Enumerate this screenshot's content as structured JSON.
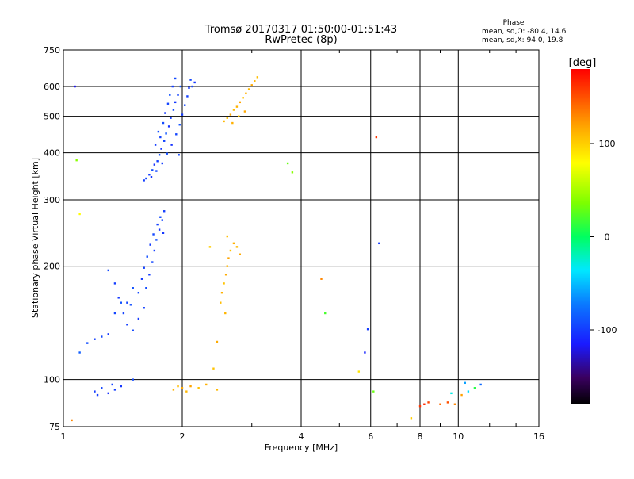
{
  "chart_data": {
    "type": "scatter",
    "title": "Tromsø 20170317 01:50:00-01:51:43",
    "subtitle": "RwPretec (8p)",
    "xlabel": "Frequency [MHz]",
    "ylabel": "Stationary phase Virtual Height [km]",
    "x_scale": "log",
    "y_scale": "log",
    "xlim": [
      1,
      16
    ],
    "ylim": [
      75,
      750
    ],
    "x_ticks": [
      1,
      2,
      4,
      6,
      8,
      10,
      16
    ],
    "x_tick_labels": [
      "1",
      "2",
      "4",
      "6",
      "8",
      "10",
      "16"
    ],
    "y_ticks": [
      75,
      100,
      200,
      300,
      400,
      500,
      600,
      750
    ],
    "y_tick_labels": [
      "75",
      "100",
      "200",
      "300",
      "400",
      "500",
      "600",
      "750"
    ],
    "grid": true,
    "stats": {
      "heading": "Phase",
      "o_line": "mean, sd,O: -80.4, 14.6",
      "x_line": "mean, sd,X:  94.0, 19.8"
    },
    "colorbar": {
      "label": "[deg]",
      "range": [
        -180,
        180
      ],
      "ticks": [
        100,
        0,
        -100
      ],
      "tick_labels": [
        "100",
        "0",
        "-100"
      ]
    },
    "series": [
      {
        "points": [
          [
            1.62,
            342,
            -95
          ],
          [
            1.65,
            350,
            -100
          ],
          [
            1.68,
            360,
            -92
          ],
          [
            1.7,
            372,
            -105
          ],
          [
            1.73,
            380,
            -98
          ],
          [
            1.75,
            395,
            -90
          ],
          [
            1.77,
            410,
            -102
          ],
          [
            1.8,
            430,
            -96
          ],
          [
            1.82,
            450,
            -88
          ],
          [
            1.85,
            470,
            -104
          ],
          [
            1.87,
            495,
            -99
          ],
          [
            1.9,
            520,
            -93
          ],
          [
            1.92,
            545,
            -101
          ],
          [
            1.95,
            570,
            -97
          ],
          [
            1.98,
            600,
            -91
          ],
          [
            1.67,
            345,
            -103
          ],
          [
            1.72,
            358,
            -95
          ],
          [
            1.78,
            375,
            -99
          ],
          [
            1.83,
            398,
            -92
          ],
          [
            1.88,
            420,
            -104
          ],
          [
            1.93,
            448,
            -96
          ],
          [
            1.97,
            475,
            -90
          ],
          [
            2.0,
            505,
            -100
          ],
          [
            2.03,
            535,
            -94
          ],
          [
            2.06,
            565,
            -98
          ],
          [
            2.08,
            595,
            -102
          ],
          [
            2.1,
            625,
            -95
          ],
          [
            1.76,
            440,
            -97
          ],
          [
            1.79,
            480,
            -93
          ],
          [
            1.81,
            510,
            -101
          ],
          [
            1.84,
            540,
            -96
          ],
          [
            1.86,
            570,
            -90
          ],
          [
            1.89,
            600,
            -99
          ],
          [
            1.92,
            630,
            -94
          ],
          [
            1.71,
            420,
            -100
          ],
          [
            1.74,
            455,
            -92
          ],
          [
            2.12,
            600,
            -97
          ],
          [
            2.15,
            615,
            -103
          ],
          [
            1.6,
            338,
            -98
          ],
          [
            1.96,
            395,
            -95
          ]
        ]
      },
      {
        "points": [
          [
            1.1,
            118,
            -85
          ],
          [
            1.15,
            125,
            -92
          ],
          [
            1.2,
            128,
            -98
          ],
          [
            1.25,
            130,
            -95
          ],
          [
            1.3,
            132,
            -102
          ],
          [
            1.35,
            150,
            -96
          ],
          [
            1.4,
            160,
            -90
          ],
          [
            1.45,
            140,
            -99
          ],
          [
            1.5,
            135,
            -94
          ],
          [
            1.55,
            145,
            -101
          ],
          [
            1.6,
            155,
            -97
          ],
          [
            1.62,
            175,
            -93
          ],
          [
            1.65,
            190,
            -100
          ],
          [
            1.68,
            205,
            -95
          ],
          [
            1.7,
            220,
            -98
          ],
          [
            1.72,
            235,
            -92
          ],
          [
            1.75,
            250,
            -103
          ],
          [
            1.78,
            265,
            -96
          ],
          [
            1.8,
            280,
            -99
          ],
          [
            1.55,
            170,
            -94
          ],
          [
            1.58,
            185,
            -101
          ],
          [
            1.6,
            198,
            -97
          ],
          [
            1.63,
            212,
            -92
          ],
          [
            1.66,
            228,
            -100
          ],
          [
            1.69,
            243,
            -95
          ],
          [
            1.73,
            258,
            -98
          ],
          [
            1.76,
            270,
            -93
          ],
          [
            1.79,
            245,
            -102
          ],
          [
            1.45,
            160,
            -96
          ],
          [
            1.5,
            175,
            -90
          ],
          [
            1.35,
            180,
            -99
          ],
          [
            1.3,
            195,
            -94
          ],
          [
            1.38,
            165,
            -101
          ],
          [
            1.42,
            150,
            -97
          ],
          [
            1.48,
            158,
            -92
          ]
        ]
      },
      {
        "points": [
          [
            1.2,
            93,
            -100
          ],
          [
            1.25,
            95,
            -95
          ],
          [
            1.3,
            92,
            -105
          ],
          [
            1.35,
            94,
            -98
          ],
          [
            1.4,
            96,
            -102
          ],
          [
            1.5,
            100,
            -94
          ],
          [
            1.22,
            91,
            -99
          ],
          [
            1.33,
            97,
            -96
          ]
        ]
      },
      {
        "points": [
          [
            2.55,
            485,
            110
          ],
          [
            2.6,
            495,
            105
          ],
          [
            2.65,
            505,
            115
          ],
          [
            2.7,
            520,
            108
          ],
          [
            2.75,
            530,
            112
          ],
          [
            2.8,
            545,
            118
          ],
          [
            2.85,
            560,
            106
          ],
          [
            2.9,
            575,
            114
          ],
          [
            2.95,
            590,
            109
          ],
          [
            3.0,
            605,
            116
          ],
          [
            3.05,
            620,
            111
          ],
          [
            3.1,
            635,
            107
          ],
          [
            2.68,
            480,
            113
          ],
          [
            2.78,
            500,
            104
          ],
          [
            2.88,
            515,
            117
          ]
        ]
      },
      {
        "points": [
          [
            2.5,
            160,
            108
          ],
          [
            2.52,
            170,
            112
          ],
          [
            2.55,
            180,
            105
          ],
          [
            2.58,
            190,
            115
          ],
          [
            2.6,
            200,
            110
          ],
          [
            2.62,
            210,
            118
          ],
          [
            2.65,
            220,
            106
          ],
          [
            2.7,
            230,
            113
          ],
          [
            2.75,
            225,
            109
          ],
          [
            2.8,
            215,
            116
          ],
          [
            2.57,
            150,
            111
          ],
          [
            2.6,
            240,
            107
          ]
        ]
      },
      {
        "points": [
          [
            1.9,
            94,
            112
          ],
          [
            1.95,
            96,
            108
          ],
          [
            2.0,
            95,
            115
          ],
          [
            2.05,
            93,
            110
          ],
          [
            2.1,
            96,
            118
          ],
          [
            2.2,
            95,
            106
          ],
          [
            2.3,
            97,
            113
          ],
          [
            2.45,
            94,
            109
          ]
        ]
      },
      {
        "points": [
          [
            8.0,
            85,
            160
          ],
          [
            8.2,
            86,
            165
          ],
          [
            8.4,
            87,
            155
          ],
          [
            9.0,
            86,
            140
          ],
          [
            9.4,
            87,
            150
          ],
          [
            9.8,
            86,
            130
          ],
          [
            10.2,
            91,
            120
          ],
          [
            10.6,
            93,
            -40
          ],
          [
            11.0,
            95,
            10
          ],
          [
            11.4,
            97,
            -80
          ],
          [
            10.4,
            98,
            -60
          ],
          [
            9.6,
            92,
            -30
          ],
          [
            7.6,
            79,
            100
          ],
          [
            4.5,
            185,
            130
          ],
          [
            4.6,
            150,
            20
          ],
          [
            5.6,
            105,
            90
          ],
          [
            5.8,
            118,
            -110
          ],
          [
            5.9,
            136,
            -100
          ],
          [
            6.2,
            440,
            160
          ],
          [
            6.3,
            230,
            -100
          ],
          [
            6.1,
            93,
            30
          ],
          [
            3.8,
            355,
            40
          ],
          [
            3.7,
            375,
            30
          ],
          [
            1.05,
            78,
            130
          ],
          [
            1.07,
            600,
            -120
          ],
          [
            1.08,
            382,
            40
          ],
          [
            1.1,
            275,
            80
          ],
          [
            2.35,
            225,
            100
          ],
          [
            2.4,
            107,
            105
          ],
          [
            2.45,
            126,
            115
          ]
        ]
      }
    ]
  }
}
